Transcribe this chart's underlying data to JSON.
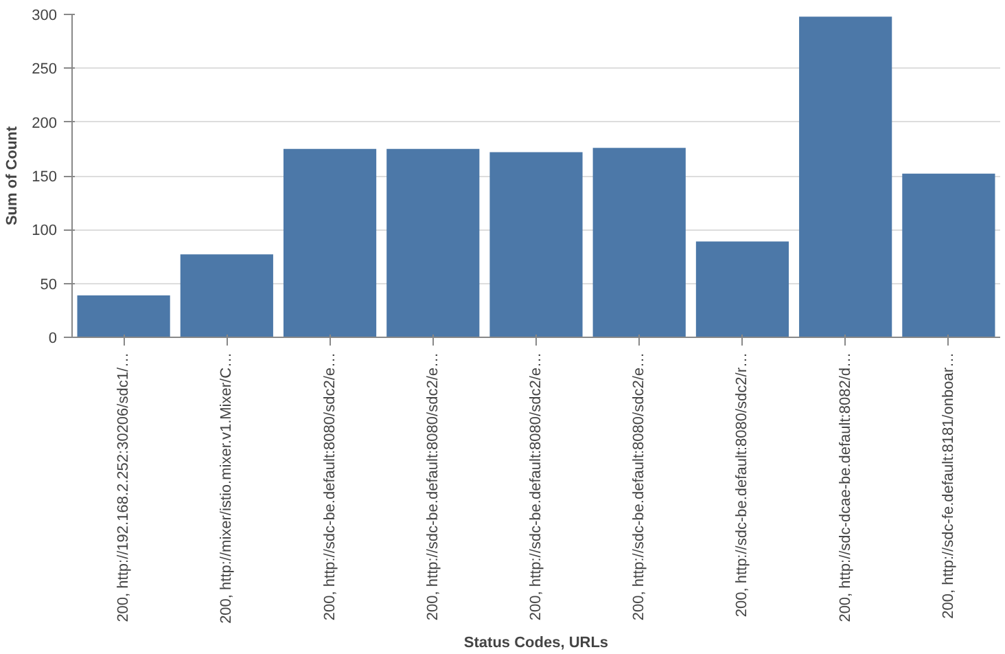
{
  "chart_data": {
    "type": "bar",
    "xlabel": "Status Codes, URLs",
    "ylabel": "Sum of Count",
    "categories": [
      "200, http://192.168.2.252:30206/sdc1/…",
      "200, http://mixer/istio.mixer.v1.Mixer/C…",
      "200, http://sdc-be.default:8080/sdc2/e…",
      "200, http://sdc-be.default:8080/sdc2/e…",
      "200, http://sdc-be.default:8080/sdc2/e…",
      "200, http://sdc-be.default:8080/sdc2/e…",
      "200, http://sdc-be.default:8080/sdc2/r…",
      "200, http://sdc-dcae-be.default:8082/d…",
      "200, http://sdc-fe.default:8181/onboar…"
    ],
    "values": [
      39,
      77,
      175,
      175,
      172,
      176,
      89,
      298,
      152
    ],
    "color": "#4c78a8",
    "ylim": [
      0,
      300
    ],
    "yticks": [
      0,
      50,
      100,
      150,
      200,
      250,
      300
    ],
    "grid": "y"
  }
}
